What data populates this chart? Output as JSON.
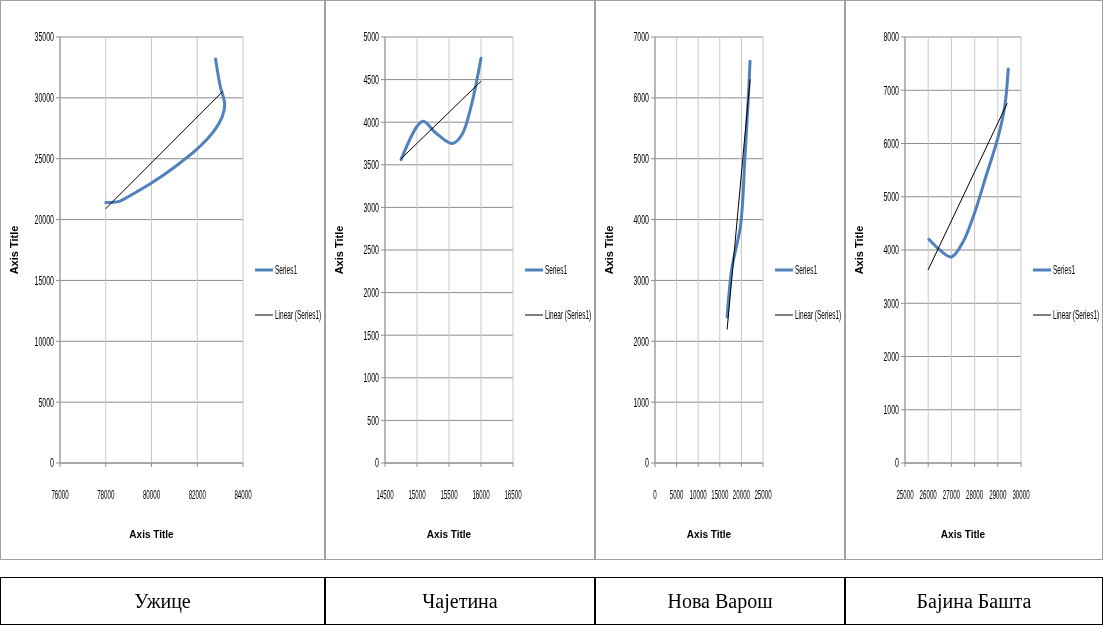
{
  "chart_data": [
    {
      "type": "line",
      "title": "Ужице",
      "xlabel": "Axis Title",
      "ylabel": "Axis Title",
      "xlim": [
        76000,
        84000
      ],
      "xticks": [
        76000,
        78000,
        80000,
        82000,
        84000
      ],
      "ylim": [
        0,
        35000
      ],
      "yticks": [
        0,
        5000,
        10000,
        15000,
        20000,
        25000,
        30000,
        35000
      ],
      "grid": true,
      "legend": "right",
      "series": [
        {
          "name": "Series1",
          "color": "#4f81bd",
          "x": [
            78000,
            78600,
            79000,
            80000,
            81000,
            82000,
            82700,
            83100,
            83200,
            83000,
            82800
          ],
          "values": [
            21400,
            21500,
            21900,
            23000,
            24300,
            25800,
            27200,
            28500,
            29500,
            31000,
            33200
          ]
        },
        {
          "name": "Linear (Series1)",
          "color": "#000000",
          "x": [
            78000,
            83100
          ],
          "values": [
            20900,
            30500
          ]
        }
      ]
    },
    {
      "type": "line",
      "title": "Чајетина",
      "xlabel": "Axis Title",
      "ylabel": "Axis Title",
      "xlim": [
        14500,
        16500
      ],
      "xticks": [
        14500,
        15000,
        15500,
        16000,
        16500
      ],
      "ylim": [
        0,
        5000
      ],
      "yticks": [
        0,
        500,
        1000,
        1500,
        2000,
        2500,
        3000,
        3500,
        4000,
        4500,
        5000
      ],
      "grid": true,
      "legend": "right",
      "series": [
        {
          "name": "Series1",
          "color": "#4f81bd",
          "x": [
            14750,
            15000,
            15100,
            15300,
            15550,
            15700,
            15850,
            16000
          ],
          "values": [
            3560,
            3950,
            4010,
            3870,
            3750,
            3850,
            4200,
            4750
          ]
        },
        {
          "name": "Linear (Series1)",
          "color": "#000000",
          "x": [
            14750,
            16000
          ],
          "values": [
            3570,
            4480
          ]
        }
      ]
    },
    {
      "type": "line",
      "title": "Нова Варош",
      "xlabel": "Axis Title",
      "ylabel": "Axis Title",
      "xlim": [
        0,
        25000
      ],
      "xticks": [
        0,
        5000,
        10000,
        15000,
        20000,
        25000
      ],
      "ylim": [
        0,
        7000
      ],
      "yticks": [
        0,
        1000,
        2000,
        3000,
        4000,
        5000,
        6000,
        7000
      ],
      "grid": true,
      "legend": "right",
      "series": [
        {
          "name": "Series1",
          "color": "#4f81bd",
          "x": [
            16700,
            17800,
            19800,
            20800,
            21600,
            22000
          ],
          "values": [
            2400,
            3200,
            3900,
            5000,
            6000,
            6600
          ]
        },
        {
          "name": "Linear (Series1)",
          "color": "#000000",
          "x": [
            16700,
            22000
          ],
          "values": [
            2200,
            6300
          ]
        }
      ]
    },
    {
      "type": "line",
      "title": "Бајина Башта",
      "xlabel": "Axis Title",
      "ylabel": "Axis Title",
      "xlim": [
        25000,
        30000
      ],
      "xticks": [
        25000,
        26000,
        27000,
        28000,
        29000,
        30000
      ],
      "ylim": [
        0,
        8000
      ],
      "yticks": [
        0,
        1000,
        2000,
        3000,
        4000,
        5000,
        6000,
        7000,
        8000
      ],
      "grid": true,
      "legend": "right",
      "series": [
        {
          "name": "Series1",
          "color": "#4f81bd",
          "x": [
            26030,
            26500,
            27000,
            27500,
            28000,
            28500,
            29000,
            29300,
            29450
          ],
          "values": [
            4200,
            4000,
            3870,
            4150,
            4700,
            5400,
            6100,
            6700,
            7400
          ]
        },
        {
          "name": "Linear (Series1)",
          "color": "#000000",
          "x": [
            26000,
            29400
          ],
          "values": [
            3630,
            6750
          ]
        }
      ]
    }
  ]
}
